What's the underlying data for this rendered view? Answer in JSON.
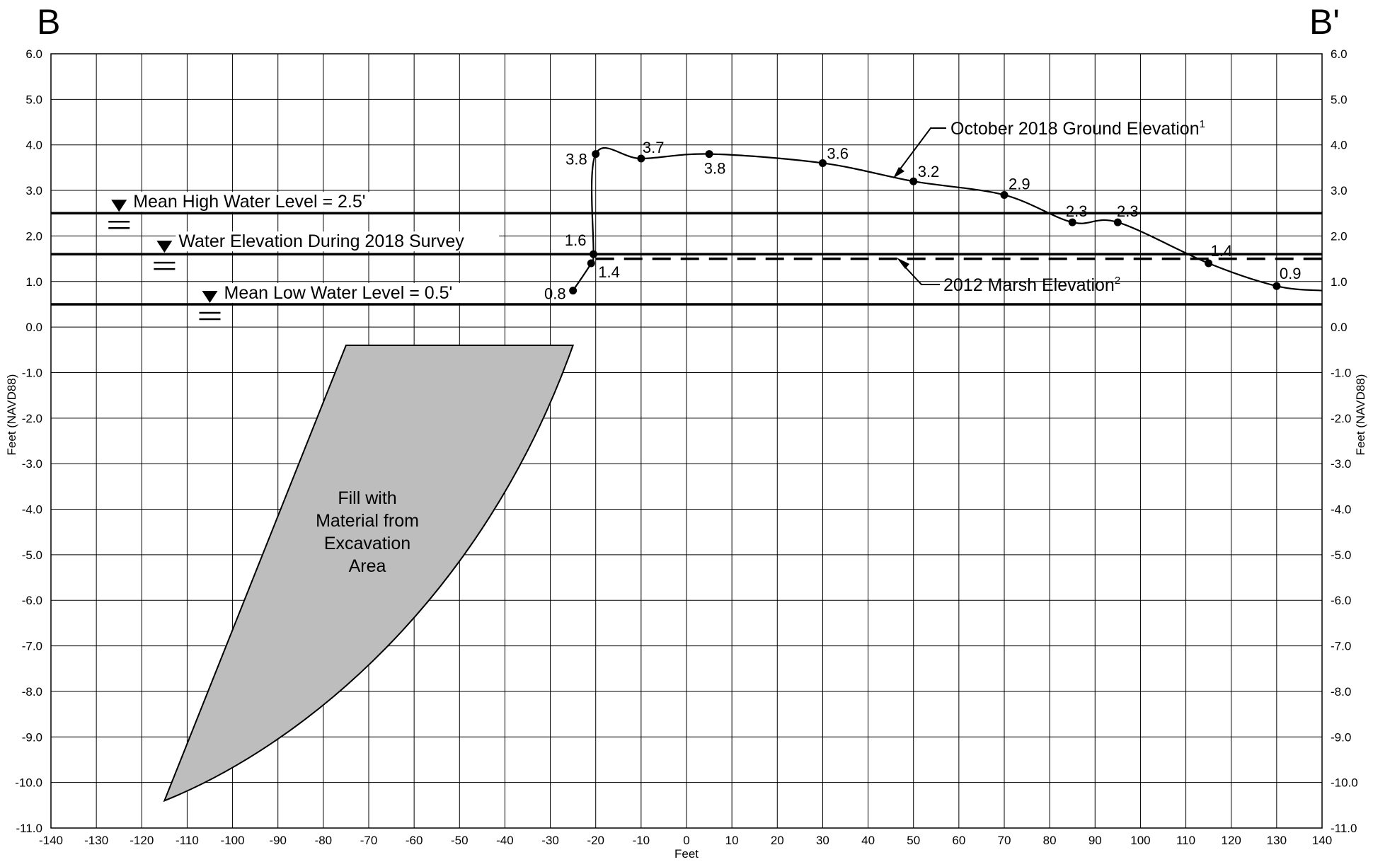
{
  "chart_data": {
    "type": "line",
    "corner_labels": {
      "left": "B",
      "right": "B'"
    },
    "xlabel": "Feet",
    "ylabel_left": "Feet (NAVD88)",
    "ylabel_right": "Feet (NAVD88)",
    "xlim": [
      -140,
      140
    ],
    "ylim": [
      -11,
      6
    ],
    "x_ticks": [
      -140,
      -130,
      -120,
      -110,
      -100,
      -90,
      -80,
      -70,
      -60,
      -50,
      -40,
      -30,
      -20,
      -10,
      0,
      10,
      20,
      30,
      40,
      50,
      60,
      70,
      80,
      90,
      100,
      110,
      120,
      130,
      140
    ],
    "y_ticks": [
      6,
      5,
      4,
      3,
      2,
      1,
      0,
      -1,
      -2,
      -3,
      -4,
      -5,
      -6,
      -7,
      -8,
      -9,
      -10,
      -11
    ],
    "grid": true,
    "water_levels": [
      {
        "label": "Mean High Water Level = 2.5'",
        "y": 2.5,
        "marker_x": -125
      },
      {
        "label": "Water Elevation During 2018 Survey",
        "y": 1.6,
        "marker_x": -115
      },
      {
        "label": "Mean Low Water Level = 0.5'",
        "y": 0.5,
        "marker_x": -105
      }
    ],
    "ground_profile": {
      "name": "October 2018 Ground Elevation",
      "superscript": "1",
      "points": [
        {
          "x": -25,
          "y": 0.8,
          "label": "0.8"
        },
        {
          "x": -21,
          "y": 1.4,
          "label": "1.4"
        },
        {
          "x": -20.5,
          "y": 1.6,
          "label": "1.6"
        },
        {
          "x": -20,
          "y": 3.8,
          "label": "3.8"
        },
        {
          "x": -10,
          "y": 3.7,
          "label": "3.7"
        },
        {
          "x": 5,
          "y": 3.8,
          "label": "3.8"
        },
        {
          "x": 30,
          "y": 3.6,
          "label": "3.6"
        },
        {
          "x": 50,
          "y": 3.2,
          "label": "3.2"
        },
        {
          "x": 70,
          "y": 2.9,
          "label": "2.9"
        },
        {
          "x": 85,
          "y": 2.3,
          "label": "2.3"
        },
        {
          "x": 95,
          "y": 2.3,
          "label": "2.3"
        },
        {
          "x": 115,
          "y": 1.4,
          "label": "1.4"
        },
        {
          "x": 130,
          "y": 0.9,
          "label": "0.9"
        }
      ],
      "end": {
        "x": 140,
        "y": 0.8
      }
    },
    "marsh_2012": {
      "name": "2012 Marsh Elevation",
      "superscript": "2",
      "y": 1.5,
      "x_range": [
        -20,
        140
      ]
    },
    "fill_area": {
      "label_lines": [
        "Fill with",
        "Material from",
        "Excavation",
        "Area"
      ],
      "top_y": -0.4,
      "top_x": [
        -75,
        -25
      ],
      "bottom": {
        "x": -115,
        "y": -10.4
      }
    }
  }
}
